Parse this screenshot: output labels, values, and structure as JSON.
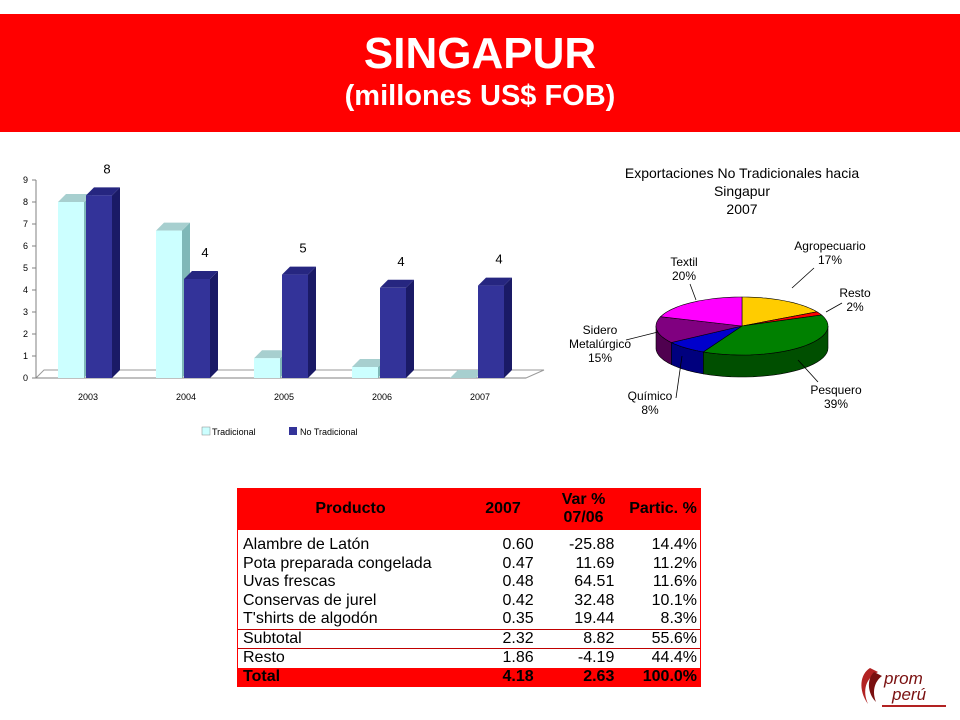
{
  "header": {
    "title": "SINGAPUR",
    "subtitle": "(millones US$ FOB)"
  },
  "colors": {
    "banner": "#ff0000",
    "tradicional": "#ccffff",
    "no_tradicional": "#333399"
  },
  "chart_data": [
    {
      "type": "bar",
      "categories": [
        "2003",
        "2004",
        "2005",
        "2006",
        "2007"
      ],
      "series": [
        {
          "name": "Tradicional",
          "values": [
            8.0,
            6.7,
            0.9,
            0.5,
            0.0
          ]
        },
        {
          "name": "No Tradicional",
          "values": [
            8.3,
            4.5,
            4.7,
            4.1,
            4.2
          ]
        }
      ],
      "data_labels": [
        "8",
        "4",
        "5",
        "4",
        "4"
      ],
      "ylim": [
        0,
        9
      ],
      "yticks": [
        "0",
        "1",
        "2",
        "3",
        "4",
        "5",
        "6",
        "7",
        "8",
        "9"
      ],
      "legend_position": "bottom",
      "three_d": true
    },
    {
      "type": "pie",
      "title_lines": [
        "Exportaciones No Tradicionales hacia",
        "Singapur",
        "2007"
      ],
      "slices": [
        {
          "label": "Agropecuario",
          "pct_label": "17%",
          "value": 17,
          "color": "#ffcc00"
        },
        {
          "label": "Resto",
          "pct_label": "2%",
          "value": 2,
          "color": "#ff0000"
        },
        {
          "label": "Pesquero",
          "pct_label": "39%",
          "value": 39,
          "color": "#008000"
        },
        {
          "label": "Químico",
          "pct_label": "8%",
          "value": 8,
          "color": "#0000cc"
        },
        {
          "label_lines": [
            "Sidero",
            "Metalúrgico"
          ],
          "pct_label": "15%",
          "value": 15,
          "color": "#800080"
        },
        {
          "label": "Textil",
          "pct_label": "20%",
          "value": 20,
          "color": "#ff00ff"
        }
      ],
      "three_d": true
    }
  ],
  "table": {
    "headers": [
      "Producto",
      "2007",
      "Var %\n07/06",
      "Partic. %"
    ],
    "header_col3_line1": "Var %",
    "header_col3_line2": "07/06",
    "rows": [
      [
        "Alambre de Latón",
        "0.60",
        "-25.88",
        "14.4%"
      ],
      [
        "Pota preparada congelada",
        "0.47",
        "11.69",
        "11.2%"
      ],
      [
        "Uvas frescas",
        "0.48",
        "64.51",
        "11.6%"
      ],
      [
        "Conservas de jurel",
        "0.42",
        "32.48",
        "10.1%"
      ],
      [
        "T'shirts de algodón",
        "0.35",
        "19.44",
        "8.3%"
      ]
    ],
    "subtotal": [
      "Subtotal",
      "2.32",
      "8.82",
      "55.6%"
    ],
    "resto": [
      "Resto",
      "1.86",
      "-4.19",
      "44.4%"
    ],
    "total": [
      "Total",
      "4.18",
      "2.63",
      "100.0%"
    ]
  },
  "logo": {
    "line1": "prom",
    "line2": "perú"
  }
}
